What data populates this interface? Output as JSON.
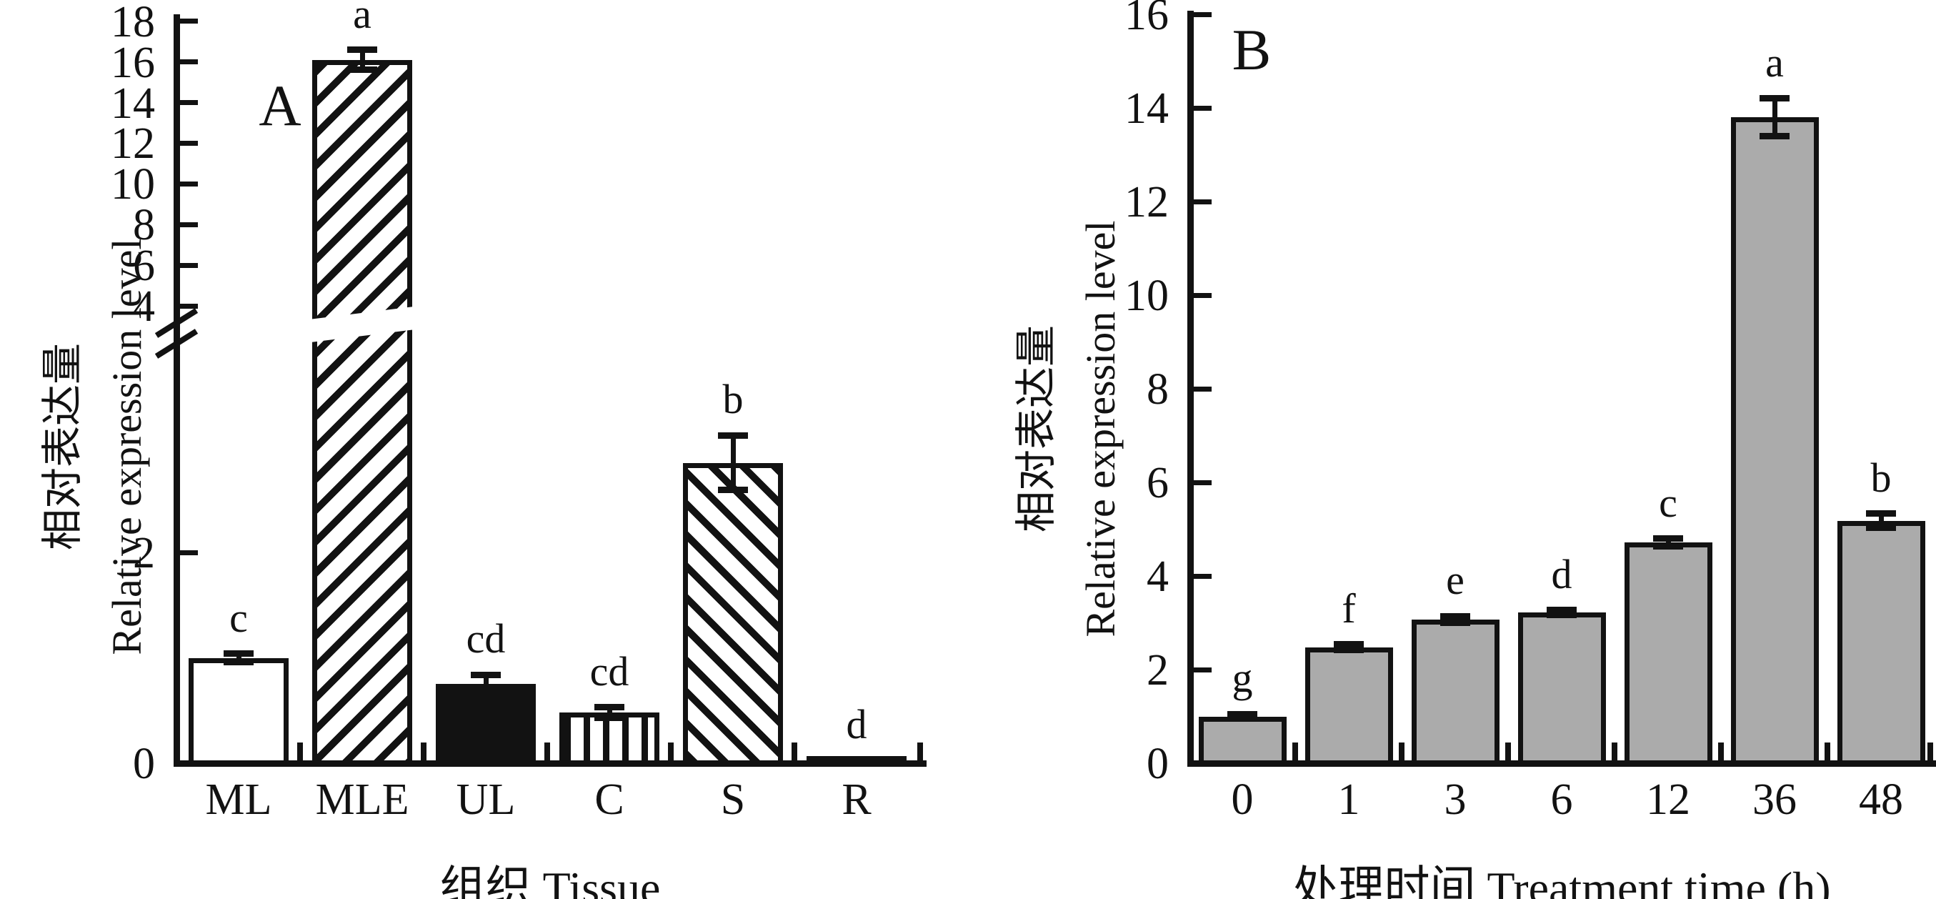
{
  "figure_type": "two-panel bar figure",
  "colors": {
    "ink": "#121212",
    "bar_gray": "#ababab",
    "background": "#ffffff"
  },
  "chart_data": [
    {
      "type": "bar",
      "panel_label": "A",
      "categories": [
        "ML",
        "MLE",
        "UL",
        "C",
        "S",
        "R"
      ],
      "values": [
        1.0,
        16.1,
        0.75,
        0.48,
        2.85,
        0.03
      ],
      "errors": [
        0.04,
        0.5,
        0.09,
        0.05,
        0.26,
        0
      ],
      "sig_letters": [
        "c",
        "a",
        "cd",
        "cd",
        "b",
        "d"
      ],
      "bar_styles": [
        "white",
        "hatch-forward",
        "black",
        "vertical-stripes",
        "hatch-back",
        "black"
      ],
      "ylabel_zh": "相对表达量",
      "ylabel_en": "Relative expression level",
      "xlabel": "组织 Tissue",
      "y_axis": {
        "break": true,
        "lower_ticks": [
          0,
          2
        ],
        "upper_ticks": [
          4,
          6,
          8,
          10,
          12,
          14,
          16,
          18
        ],
        "lower_range": [
          0,
          4
        ],
        "upper_range": [
          4,
          18
        ]
      },
      "grid": false,
      "legend": false
    },
    {
      "type": "bar",
      "panel_label": "B",
      "categories": [
        "0",
        "1",
        "3",
        "6",
        "12",
        "36",
        "48"
      ],
      "values": [
        1.0,
        2.48,
        3.07,
        3.22,
        4.72,
        13.8,
        5.18
      ],
      "errors": [
        0.05,
        0.06,
        0.07,
        0.05,
        0.08,
        0.4,
        0.15
      ],
      "sig_letters": [
        "g",
        "f",
        "e",
        "d",
        "c",
        "a",
        "b"
      ],
      "bar_color": "#ababab",
      "ylabel_zh": "相对表达量",
      "ylabel_en": "Relative expression level",
      "xlabel": "处理时间 Treatment time (h)",
      "y_axis": {
        "break": false,
        "ticks": [
          0,
          2,
          4,
          6,
          8,
          10,
          12,
          14,
          16
        ],
        "range": [
          0,
          16
        ]
      },
      "grid": false,
      "legend": false
    }
  ]
}
